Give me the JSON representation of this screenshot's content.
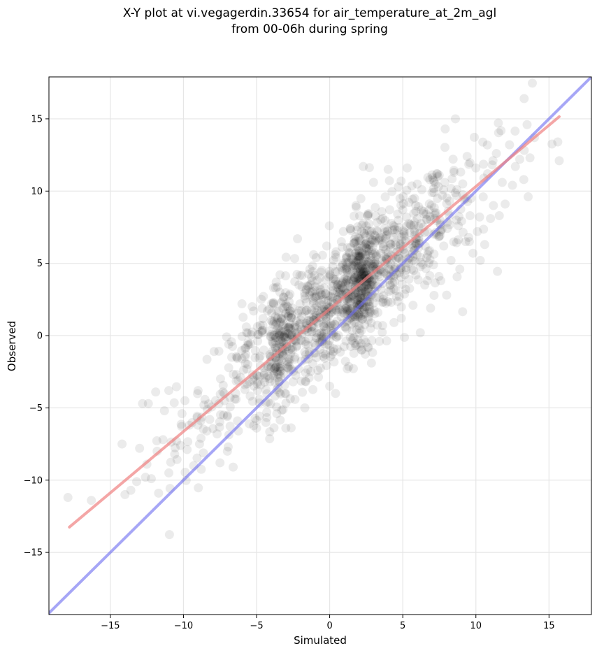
{
  "chart_data": {
    "type": "scatter",
    "title_line1": "X-Y plot at vi.vegagerdin.33654 for air_temperature_at_2m_agl",
    "title_line2": "from 00-06h during spring",
    "xlabel": "Simulated",
    "ylabel": "Observed",
    "xlim": [
      -19.2,
      17.9
    ],
    "ylim": [
      -19.3,
      17.9
    ],
    "x_ticks": [
      -15,
      -10,
      -5,
      0,
      5,
      10,
      15
    ],
    "y_ticks": [
      -15,
      -10,
      -5,
      0,
      5,
      10,
      15
    ],
    "x_tick_labels": [
      "−15",
      "−10",
      "−5",
      "0",
      "5",
      "10",
      "15"
    ],
    "y_tick_labels": [
      "−15",
      "−10",
      "−5",
      "0",
      "5",
      "10",
      "15"
    ],
    "grid": true,
    "point_color": "#000000",
    "point_opacity": 0.08,
    "fit_line": {
      "color": "#f08080",
      "x": [
        -17.8,
        15.7
      ],
      "y": [
        -13.25,
        15.15
      ]
    },
    "identity_line": {
      "color": "#6a6af0",
      "x": [
        -19.2,
        17.9
      ],
      "y": [
        -19.2,
        17.9
      ]
    },
    "approx_point_count": 1500,
    "points": [
      [
        -17.9,
        -11.2
      ],
      [
        -16.3,
        -11.4
      ],
      [
        -14.2,
        -7.5
      ],
      [
        -14.0,
        -11.0
      ],
      [
        -13.6,
        -10.7
      ],
      [
        -13.2,
        -10.1
      ],
      [
        -13.0,
        -7.8
      ],
      [
        -12.8,
        -4.7
      ],
      [
        -12.6,
        -9.8
      ],
      [
        -12.4,
        -4.7
      ],
      [
        -12.2,
        -9.9
      ],
      [
        -11.9,
        -3.9
      ],
      [
        -11.8,
        -8.0
      ],
      [
        -11.7,
        -10.9
      ],
      [
        -11.4,
        -7.2
      ],
      [
        -11.3,
        -5.2
      ],
      [
        -11.0,
        -3.8
      ],
      [
        -10.6,
        -8.2
      ],
      [
        -10.2,
        -7.6
      ],
      [
        -9.9,
        -4.5
      ],
      [
        -9.6,
        -6.2
      ],
      [
        -9.3,
        -9.0
      ],
      [
        -9.0,
        -3.8
      ],
      [
        -8.8,
        -7.1
      ],
      [
        -8.6,
        -4.8
      ],
      [
        -8.4,
        -6.6
      ],
      [
        -8.2,
        -5.8
      ],
      [
        -7.9,
        -1.1
      ],
      [
        -7.7,
        -6.8
      ],
      [
        -7.5,
        -8.8
      ],
      [
        -7.3,
        -3.9
      ],
      [
        -7.0,
        -5.6
      ],
      [
        -6.9,
        -0.6
      ],
      [
        -6.7,
        -1.5
      ],
      [
        -6.6,
        -9.1
      ],
      [
        -6.3,
        -5.9
      ],
      [
        -6.1,
        -2.9
      ],
      [
        -6.0,
        2.2
      ],
      [
        -5.8,
        -3.4
      ],
      [
        -5.7,
        0.6
      ],
      [
        -5.5,
        -6.1
      ],
      [
        -5.3,
        2.0
      ],
      [
        -5.2,
        1.7
      ],
      [
        -5.0,
        -6.4
      ],
      [
        -4.8,
        -4.4
      ],
      [
        -4.6,
        0.2
      ],
      [
        -4.5,
        -1.0
      ],
      [
        -4.3,
        -5.3
      ],
      [
        -4.0,
        -1.8
      ],
      [
        -3.8,
        1.0
      ],
      [
        -3.6,
        -2.5
      ],
      [
        -3.4,
        3.0
      ],
      [
        -3.3,
        -1.7
      ],
      [
        -3.0,
        -6.4
      ],
      [
        -2.9,
        -1.8
      ],
      [
        -2.7,
        1.7
      ],
      [
        -2.5,
        -3.2
      ],
      [
        -2.4,
        0.6
      ],
      [
        -2.2,
        6.7
      ],
      [
        -2.1,
        3.5
      ],
      [
        -1.9,
        0.1
      ],
      [
        -1.7,
        -5.0
      ],
      [
        -1.6,
        2.3
      ],
      [
        -1.4,
        -1.1
      ],
      [
        -1.2,
        3.8
      ],
      [
        -1.1,
        5.6
      ],
      [
        -0.9,
        1.2
      ],
      [
        -0.8,
        -2.4
      ],
      [
        -0.6,
        4.4
      ],
      [
        -0.5,
        -0.4
      ],
      [
        -0.3,
        2.9
      ],
      [
        -0.2,
        6.2
      ],
      [
        0.0,
        -3.5
      ],
      [
        0.1,
        1.6
      ],
      [
        0.2,
        4.8
      ],
      [
        0.4,
        -4.0
      ],
      [
        0.5,
        2.5
      ],
      [
        0.6,
        0.0
      ],
      [
        0.8,
        6.5
      ],
      [
        0.9,
        3.3
      ],
      [
        1.0,
        1.5
      ],
      [
        1.2,
        -2.3
      ],
      [
        1.3,
        5.1
      ],
      [
        1.4,
        7.4
      ],
      [
        1.5,
        0.8
      ],
      [
        1.7,
        4.0
      ],
      [
        1.8,
        9.0
      ],
      [
        1.9,
        2.2
      ],
      [
        2.0,
        5.9
      ],
      [
        2.1,
        5.5
      ],
      [
        2.2,
        -1.0
      ],
      [
        2.3,
        11.7
      ],
      [
        2.4,
        6.3
      ],
      [
        2.5,
        3.0
      ],
      [
        2.6,
        8.3
      ],
      [
        2.8,
        0.5
      ],
      [
        2.9,
        4.6
      ],
      [
        3.0,
        10.6
      ],
      [
        3.1,
        6.9
      ],
      [
        3.3,
        1.6
      ],
      [
        3.4,
        -0.4
      ],
      [
        3.5,
        8.0
      ],
      [
        3.6,
        3.6
      ],
      [
        3.8,
        9.6
      ],
      [
        3.9,
        5.3
      ],
      [
        4.0,
        11.5
      ],
      [
        4.2,
        2.3
      ],
      [
        4.3,
        7.3
      ],
      [
        4.4,
        0.9
      ],
      [
        4.5,
        4.7
      ],
      [
        4.7,
        10.3
      ],
      [
        4.8,
        6.0
      ],
      [
        4.9,
        1.2
      ],
      [
        5.0,
        8.7
      ],
      [
        5.2,
        3.2
      ],
      [
        5.3,
        11.6
      ],
      [
        5.4,
        5.0
      ],
      [
        5.5,
        7.7
      ],
      [
        5.7,
        2.1
      ],
      [
        5.8,
        9.5
      ],
      [
        5.9,
        4.2
      ],
      [
        6.1,
        6.6
      ],
      [
        6.2,
        0.2
      ],
      [
        6.3,
        10.1
      ],
      [
        6.5,
        3.5
      ],
      [
        6.6,
        8.4
      ],
      [
        6.7,
        5.6
      ],
      [
        6.9,
        1.9
      ],
      [
        7.0,
        9.9
      ],
      [
        7.1,
        4.9
      ],
      [
        7.3,
        7.0
      ],
      [
        7.4,
        11.0
      ],
      [
        7.6,
        3.8
      ],
      [
        7.8,
        6.2
      ],
      [
        7.9,
        14.3
      ],
      [
        8.0,
        2.8
      ],
      [
        8.2,
        9.3
      ],
      [
        8.3,
        5.2
      ],
      [
        8.5,
        11.3
      ],
      [
        8.6,
        15.0
      ],
      [
        8.8,
        7.6
      ],
      [
        8.9,
        4.6
      ],
      [
        9.1,
        10.5
      ],
      [
        9.3,
        6.5
      ],
      [
        9.4,
        12.4
      ],
      [
        9.6,
        8.3
      ],
      [
        9.8,
        5.7
      ],
      [
        10.0,
        11.6
      ],
      [
        10.1,
        7.2
      ],
      [
        10.3,
        5.2
      ],
      [
        10.5,
        9.6
      ],
      [
        10.6,
        6.3
      ],
      [
        10.8,
        11.2
      ],
      [
        11.0,
        8.1
      ],
      [
        11.2,
        9.0
      ],
      [
        11.4,
        12.6
      ],
      [
        11.6,
        8.3
      ],
      [
        11.8,
        10.6
      ],
      [
        12.0,
        9.1
      ],
      [
        12.3,
        13.2
      ],
      [
        12.5,
        10.4
      ],
      [
        12.7,
        11.7
      ],
      [
        13.0,
        12.2
      ],
      [
        13.3,
        16.4
      ],
      [
        13.5,
        14.6
      ],
      [
        13.7,
        12.3
      ],
      [
        14.0,
        13.7
      ],
      [
        15.6,
        13.4
      ],
      [
        15.7,
        12.1
      ],
      [
        -12.5,
        -8.9
      ],
      [
        -11.0,
        -9.5
      ],
      [
        -10.1,
        -5.4
      ],
      [
        -8.9,
        -7.5
      ],
      [
        -7.8,
        -4.5
      ],
      [
        -6.4,
        -4.4
      ],
      [
        -5.6,
        -2.0
      ],
      [
        -4.9,
        -3.2
      ],
      [
        -4.2,
        -2.8
      ],
      [
        -3.9,
        -0.5
      ],
      [
        -3.2,
        -0.9
      ],
      [
        -2.6,
        -0.1
      ],
      [
        -2.0,
        1.1
      ],
      [
        -1.5,
        0.3
      ],
      [
        -1.0,
        1.9
      ],
      [
        -0.4,
        1.4
      ],
      [
        0.3,
        3.9
      ],
      [
        0.7,
        2.9
      ],
      [
        1.1,
        3.6
      ],
      [
        1.6,
        2.8
      ],
      [
        2.2,
        4.2
      ],
      [
        2.7,
        3.4
      ],
      [
        3.2,
        5.6
      ],
      [
        3.7,
        4.4
      ],
      [
        4.1,
        6.4
      ],
      [
        4.6,
        5.8
      ],
      [
        5.1,
        6.9
      ],
      [
        5.6,
        6.3
      ],
      [
        6.0,
        8.1
      ],
      [
        6.4,
        7.5
      ],
      [
        6.8,
        8.7
      ],
      [
        7.2,
        8.1
      ],
      [
        7.7,
        9.7
      ],
      [
        8.1,
        8.6
      ],
      [
        8.7,
        10.1
      ],
      [
        9.2,
        9.4
      ]
    ]
  }
}
